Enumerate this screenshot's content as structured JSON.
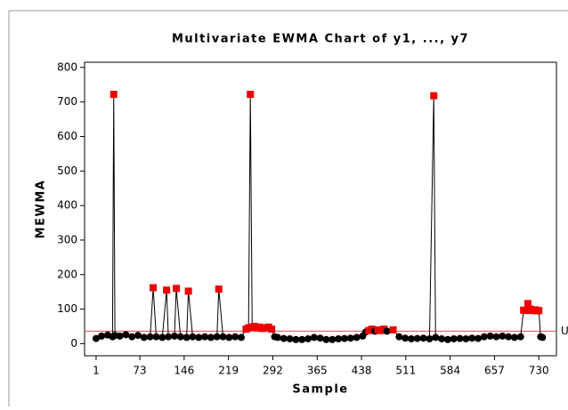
{
  "chart_data": {
    "type": "control",
    "title": "Multivariate EWMA Chart of y1, ..., y7",
    "xlabel": "Sample",
    "ylabel": "MEWMA",
    "x": [
      1,
      10,
      20,
      28,
      30,
      32,
      40,
      50,
      60,
      70,
      80,
      90,
      95,
      100,
      110,
      117,
      120,
      130,
      133,
      140,
      150,
      153,
      160,
      170,
      180,
      190,
      200,
      203,
      210,
      220,
      230,
      240,
      248,
      252,
      255,
      258,
      262,
      266,
      270,
      275,
      280,
      285,
      290,
      295,
      300,
      310,
      320,
      330,
      340,
      350,
      360,
      370,
      380,
      390,
      400,
      410,
      420,
      430,
      440,
      445,
      450,
      455,
      460,
      465,
      470,
      475,
      480,
      490,
      500,
      510,
      520,
      530,
      540,
      550,
      557,
      560,
      570,
      580,
      590,
      600,
      610,
      620,
      630,
      640,
      650,
      660,
      670,
      680,
      690,
      700,
      705,
      709,
      712,
      716,
      720,
      724,
      727,
      730,
      733,
      736
    ],
    "values": [
      15,
      22,
      25,
      20,
      722,
      24,
      22,
      26,
      20,
      24,
      18,
      20,
      162,
      20,
      18,
      155,
      20,
      22,
      160,
      20,
      18,
      152,
      20,
      18,
      20,
      18,
      20,
      158,
      20,
      18,
      20,
      18,
      42,
      46,
      722,
      48,
      50,
      46,
      48,
      44,
      46,
      48,
      42,
      20,
      18,
      15,
      14,
      12,
      12,
      14,
      18,
      16,
      12,
      12,
      14,
      15,
      16,
      18,
      22,
      34,
      38,
      42,
      36,
      40,
      38,
      42,
      36,
      40,
      20,
      16,
      14,
      15,
      16,
      14,
      718,
      18,
      14,
      12,
      14,
      15,
      14,
      16,
      15,
      20,
      22,
      20,
      22,
      20,
      18,
      20,
      97,
      96,
      116,
      100,
      96,
      98,
      95,
      96,
      20,
      18
    ],
    "color": "#000000",
    "alarm_color": "#ee0000",
    "ucl": 36,
    "ucl_color": "#e05050",
    "ucl_label": "U",
    "xlim": [
      -18,
      759
    ],
    "xticks": [
      1,
      73,
      146,
      219,
      292,
      365,
      438,
      511,
      584,
      657,
      730
    ],
    "ylim": [
      -35,
      815
    ],
    "yticks": [
      0,
      100,
      200,
      300,
      400,
      500,
      600,
      700,
      800
    ]
  }
}
